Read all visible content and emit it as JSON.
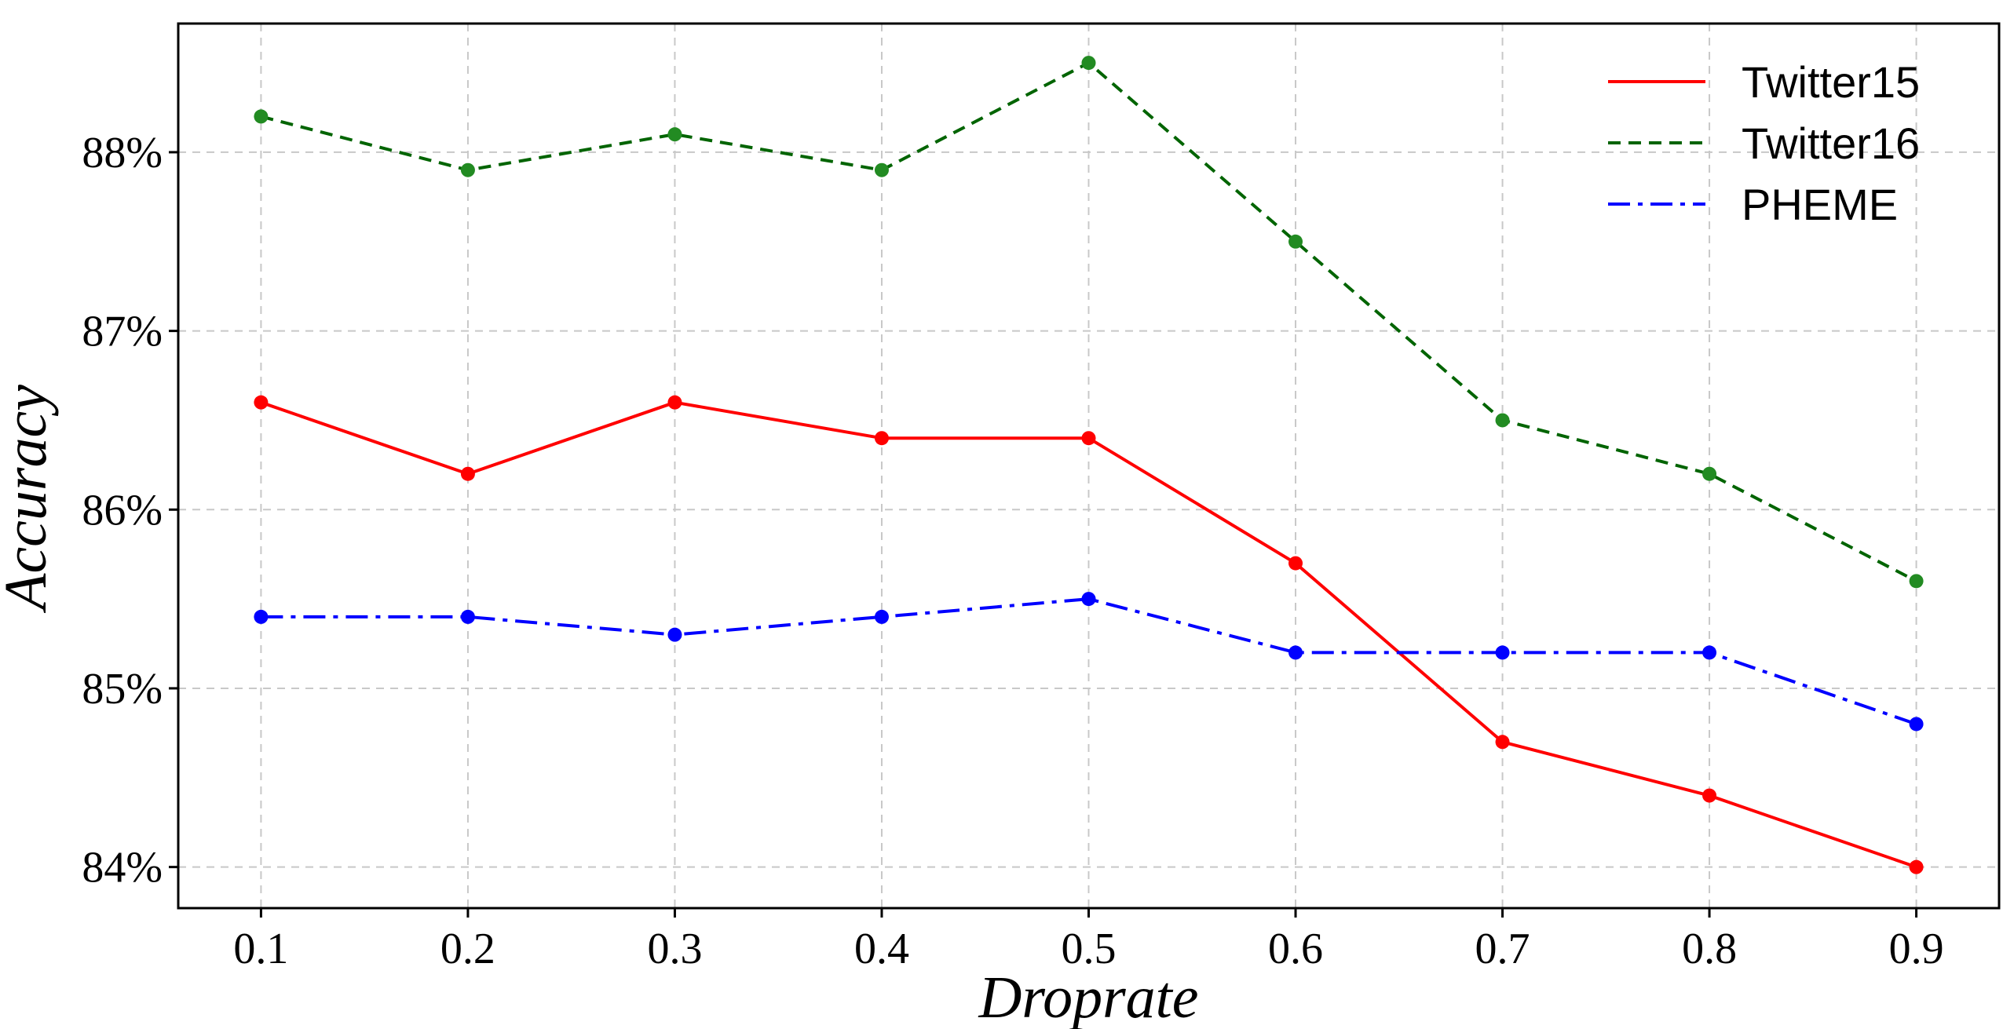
{
  "chart_data": {
    "type": "line",
    "xlabel": "Droprate",
    "ylabel": "Accuracy",
    "x": [
      0.1,
      0.2,
      0.3,
      0.4,
      0.5,
      0.6,
      0.7,
      0.8,
      0.9
    ],
    "x_tick_labels": [
      "0.1",
      "0.2",
      "0.3",
      "0.4",
      "0.5",
      "0.6",
      "0.7",
      "0.8",
      "0.9"
    ],
    "xlim": [
      0.06,
      0.94
    ],
    "y_ticks": [
      84,
      85,
      86,
      87,
      88
    ],
    "y_tick_labels": [
      "84%",
      "85%",
      "86%",
      "87%",
      "88%"
    ],
    "ylim": [
      83.77,
      88.72
    ],
    "grid": true,
    "legend_position": "top-right",
    "series": [
      {
        "name": "Twitter15",
        "color": "#ff0000",
        "line_style": "solid",
        "values": [
          86.6,
          86.2,
          86.6,
          86.4,
          86.4,
          85.7,
          84.7,
          84.4,
          84.0
        ]
      },
      {
        "name": "Twitter16",
        "color": "#006400",
        "marker_color": "#228b22",
        "line_style": "dashed",
        "values": [
          88.2,
          87.9,
          88.1,
          87.9,
          88.5,
          87.5,
          86.5,
          86.2,
          85.6
        ]
      },
      {
        "name": "PHEME",
        "color": "#0000ff",
        "line_style": "dashdot",
        "values": [
          85.4,
          85.4,
          85.3,
          85.4,
          85.5,
          85.2,
          85.2,
          85.2,
          84.8
        ]
      }
    ]
  }
}
